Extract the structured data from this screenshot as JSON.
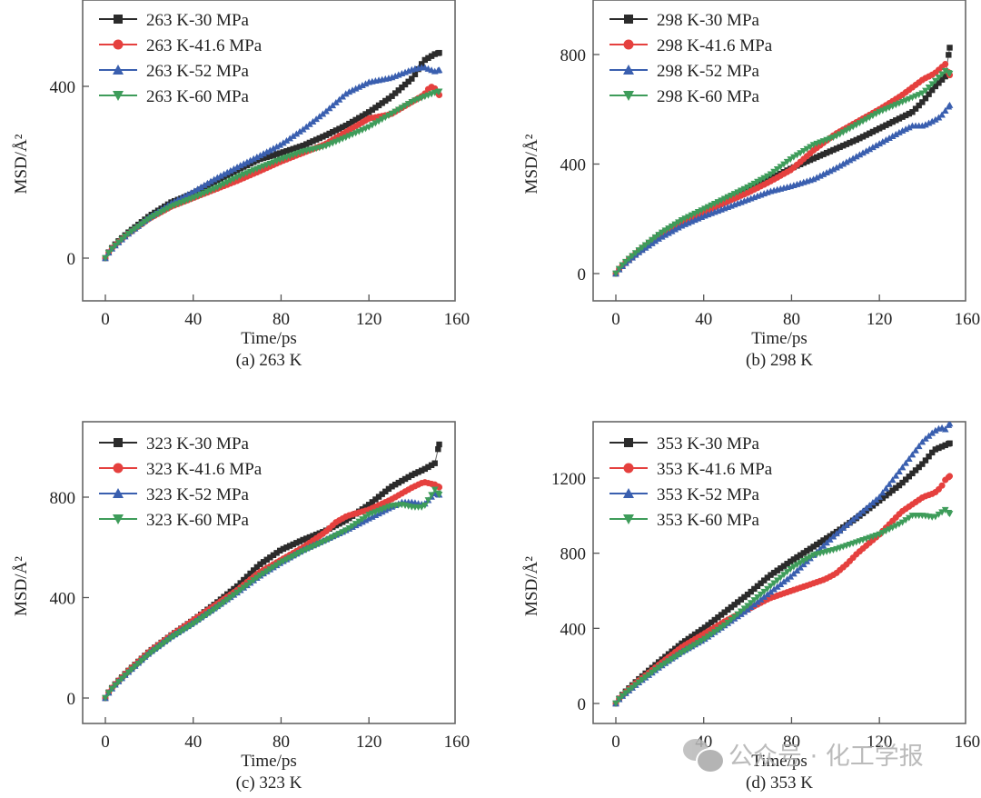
{
  "figure": {
    "watermark": {
      "icon": "wechat-icon",
      "text": "公众号 · 化工学报"
    }
  },
  "chart_data": [
    {
      "type": "scatter",
      "caption": "(a) 263 K",
      "xlabel": "Time/ps",
      "ylabel": "MSD/Å²",
      "xlim": [
        -10,
        160
      ],
      "ylim": [
        -100,
        600
      ],
      "xticks": [
        0,
        40,
        80,
        120,
        160
      ],
      "yticks": [
        0,
        400
      ],
      "grid": false,
      "legend": "top-left",
      "series": [
        {
          "name": "263 K-30 MPa",
          "color": "#2b2b2b",
          "marker": "square",
          "x": [
            0,
            2,
            5,
            10,
            20,
            30,
            40,
            50,
            60,
            70,
            80,
            90,
            100,
            110,
            120,
            130,
            140,
            145,
            150,
            152
          ],
          "y": [
            0,
            18,
            35,
            58,
            98,
            130,
            150,
            178,
            205,
            230,
            245,
            262,
            285,
            310,
            340,
            375,
            420,
            460,
            475,
            478
          ]
        },
        {
          "name": "263 K-41.6 MPa",
          "color": "#e5403e",
          "marker": "circle",
          "x": [
            0,
            2,
            5,
            10,
            20,
            30,
            40,
            50,
            60,
            70,
            80,
            90,
            100,
            110,
            120,
            130,
            140,
            145,
            148,
            150,
            152
          ],
          "y": [
            0,
            17,
            33,
            55,
            92,
            120,
            140,
            160,
            180,
            202,
            225,
            245,
            265,
            295,
            325,
            335,
            365,
            380,
            400,
            395,
            380
          ]
        },
        {
          "name": "263 K-52 MPa",
          "color": "#3a5faf",
          "marker": "triangle-up",
          "x": [
            0,
            2,
            5,
            10,
            20,
            30,
            40,
            50,
            60,
            70,
            80,
            90,
            100,
            110,
            120,
            130,
            140,
            145,
            150,
            152
          ],
          "y": [
            0,
            17,
            32,
            55,
            95,
            128,
            155,
            185,
            212,
            238,
            265,
            300,
            340,
            385,
            410,
            420,
            440,
            445,
            435,
            438
          ]
        },
        {
          "name": "263 K-60 MPa",
          "color": "#3e9c5a",
          "marker": "triangle-down",
          "x": [
            0,
            2,
            5,
            10,
            20,
            30,
            40,
            50,
            60,
            70,
            80,
            90,
            100,
            110,
            120,
            130,
            140,
            145,
            150,
            152
          ],
          "y": [
            0,
            16,
            32,
            55,
            92,
            120,
            140,
            162,
            188,
            210,
            230,
            248,
            260,
            282,
            305,
            335,
            365,
            375,
            385,
            388
          ]
        }
      ]
    },
    {
      "type": "scatter",
      "caption": "(b) 298 K",
      "xlabel": "Time/ps",
      "ylabel": "MSD/Å²",
      "xlim": [
        -10,
        160
      ],
      "ylim": [
        -100,
        1000
      ],
      "xticks": [
        0,
        40,
        80,
        120,
        160
      ],
      "yticks": [
        0,
        400,
        800
      ],
      "grid": false,
      "legend": "top-left",
      "series": [
        {
          "name": "298 K-30 MPa",
          "color": "#2b2b2b",
          "marker": "square",
          "x": [
            0,
            2,
            5,
            10,
            20,
            30,
            40,
            50,
            60,
            70,
            80,
            90,
            100,
            110,
            120,
            130,
            135,
            140,
            145,
            150,
            152
          ],
          "y": [
            0,
            22,
            45,
            80,
            140,
            190,
            230,
            275,
            310,
            345,
            385,
            420,
            455,
            490,
            530,
            570,
            590,
            630,
            680,
            720,
            825
          ]
        },
        {
          "name": "298 K-41.6 MPa",
          "color": "#e5403e",
          "marker": "circle",
          "x": [
            0,
            2,
            5,
            10,
            20,
            30,
            40,
            50,
            60,
            70,
            80,
            90,
            100,
            110,
            120,
            130,
            140,
            145,
            150,
            152
          ],
          "y": [
            0,
            22,
            45,
            80,
            140,
            190,
            225,
            260,
            295,
            335,
            380,
            450,
            510,
            555,
            600,
            650,
            710,
            730,
            765,
            725
          ]
        },
        {
          "name": "298 K-52 MPa",
          "color": "#3a5faf",
          "marker": "triangle-up",
          "x": [
            0,
            2,
            5,
            10,
            20,
            30,
            40,
            50,
            60,
            70,
            80,
            90,
            100,
            110,
            120,
            130,
            135,
            140,
            145,
            148,
            152
          ],
          "y": [
            0,
            20,
            42,
            75,
            130,
            175,
            210,
            240,
            270,
            300,
            320,
            345,
            385,
            430,
            475,
            520,
            540,
            540,
            560,
            575,
            615
          ]
        },
        {
          "name": "298 K-60 MPa",
          "color": "#3e9c5a",
          "marker": "triangle-down",
          "x": [
            0,
            2,
            5,
            10,
            20,
            30,
            40,
            50,
            60,
            70,
            80,
            90,
            100,
            110,
            120,
            130,
            140,
            145,
            150,
            152
          ],
          "y": [
            0,
            23,
            47,
            82,
            145,
            195,
            235,
            275,
            315,
            360,
            420,
            470,
            500,
            545,
            590,
            625,
            660,
            700,
            740,
            730
          ]
        }
      ]
    },
    {
      "type": "scatter",
      "caption": "(c) 323 K",
      "xlabel": "Time/ps",
      "ylabel": "MSD/Å²",
      "xlim": [
        -10,
        160
      ],
      "ylim": [
        -100,
        1100
      ],
      "xticks": [
        0,
        40,
        80,
        120,
        160
      ],
      "yticks": [
        0,
        400,
        800
      ],
      "grid": false,
      "legend": "top-left",
      "series": [
        {
          "name": "323 K-30 MPa",
          "color": "#2b2b2b",
          "marker": "square",
          "x": [
            0,
            2,
            5,
            10,
            20,
            30,
            40,
            50,
            60,
            70,
            80,
            90,
            100,
            110,
            120,
            130,
            140,
            145,
            150,
            152
          ],
          "y": [
            0,
            30,
            60,
            105,
            185,
            250,
            310,
            375,
            445,
            530,
            590,
            630,
            665,
            710,
            770,
            840,
            890,
            910,
            935,
            1010
          ]
        },
        {
          "name": "323 K-41.6 MPa",
          "color": "#e5403e",
          "marker": "circle",
          "x": [
            0,
            2,
            5,
            10,
            20,
            30,
            40,
            50,
            60,
            70,
            80,
            90,
            100,
            105,
            110,
            120,
            130,
            140,
            145,
            150,
            152
          ],
          "y": [
            0,
            30,
            60,
            105,
            185,
            250,
            310,
            370,
            430,
            500,
            550,
            600,
            660,
            700,
            725,
            750,
            790,
            840,
            860,
            850,
            840
          ]
        },
        {
          "name": "323 K-52 MPa",
          "color": "#3a5faf",
          "marker": "triangle-up",
          "x": [
            0,
            2,
            5,
            10,
            20,
            30,
            40,
            50,
            60,
            70,
            80,
            90,
            100,
            110,
            120,
            130,
            135,
            140,
            145,
            150,
            152
          ],
          "y": [
            0,
            28,
            58,
            100,
            180,
            245,
            300,
            360,
            420,
            485,
            540,
            590,
            630,
            670,
            715,
            760,
            780,
            780,
            770,
            815,
            810
          ]
        },
        {
          "name": "323 K-60 MPa",
          "color": "#3e9c5a",
          "marker": "triangle-down",
          "x": [
            0,
            2,
            5,
            10,
            20,
            30,
            40,
            50,
            60,
            70,
            80,
            90,
            100,
            110,
            120,
            130,
            135,
            140,
            145,
            150,
            152
          ],
          "y": [
            0,
            27,
            55,
            98,
            175,
            240,
            295,
            355,
            420,
            485,
            540,
            585,
            625,
            670,
            730,
            765,
            770,
            760,
            760,
            830,
            810
          ]
        }
      ]
    },
    {
      "type": "scatter",
      "caption": "(d) 353 K",
      "xlabel": "Time/ps",
      "ylabel": "MSD/Å²",
      "xlim": [
        -10,
        160
      ],
      "ylim": [
        -100,
        1600
      ],
      "xticks": [
        0,
        40,
        80,
        120,
        160
      ],
      "yticks": [
        0,
        400,
        800,
        1200
      ],
      "grid": false,
      "legend": "top-left",
      "series": [
        {
          "name": "353 K-30 MPa",
          "color": "#2b2b2b",
          "marker": "square",
          "x": [
            0,
            2,
            5,
            10,
            20,
            30,
            40,
            50,
            60,
            70,
            80,
            90,
            100,
            110,
            120,
            130,
            140,
            145,
            150,
            152
          ],
          "y": [
            0,
            35,
            70,
            125,
            225,
            320,
            400,
            490,
            580,
            680,
            760,
            835,
            910,
            990,
            1080,
            1170,
            1280,
            1350,
            1375,
            1385
          ]
        },
        {
          "name": "353 K-41.6 MPa",
          "color": "#e5403e",
          "marker": "circle",
          "x": [
            0,
            2,
            5,
            10,
            20,
            30,
            40,
            50,
            60,
            70,
            80,
            90,
            95,
            100,
            105,
            110,
            120,
            130,
            140,
            145,
            148,
            150,
            152
          ],
          "y": [
            0,
            33,
            66,
            118,
            210,
            300,
            370,
            440,
            500,
            560,
            600,
            640,
            660,
            690,
            740,
            800,
            900,
            1020,
            1100,
            1120,
            1150,
            1190,
            1210
          ]
        },
        {
          "name": "353 K-52 MPa",
          "color": "#3a5faf",
          "marker": "triangle-up",
          "x": [
            0,
            2,
            5,
            10,
            20,
            30,
            40,
            50,
            60,
            70,
            80,
            90,
            100,
            110,
            120,
            130,
            140,
            145,
            148,
            150,
            152
          ],
          "y": [
            0,
            30,
            60,
            108,
            195,
            275,
            340,
            420,
            500,
            590,
            680,
            790,
            900,
            1000,
            1100,
            1250,
            1400,
            1450,
            1470,
            1460,
            1490
          ]
        },
        {
          "name": "353 K-60 MPa",
          "color": "#3e9c5a",
          "marker": "triangle-down",
          "x": [
            0,
            2,
            5,
            10,
            20,
            30,
            40,
            50,
            60,
            70,
            80,
            90,
            100,
            110,
            120,
            130,
            135,
            140,
            145,
            150,
            152
          ],
          "y": [
            0,
            30,
            60,
            108,
            195,
            270,
            340,
            420,
            520,
            620,
            720,
            790,
            820,
            860,
            900,
            960,
            1000,
            1000,
            990,
            1030,
            1010
          ]
        }
      ]
    }
  ]
}
